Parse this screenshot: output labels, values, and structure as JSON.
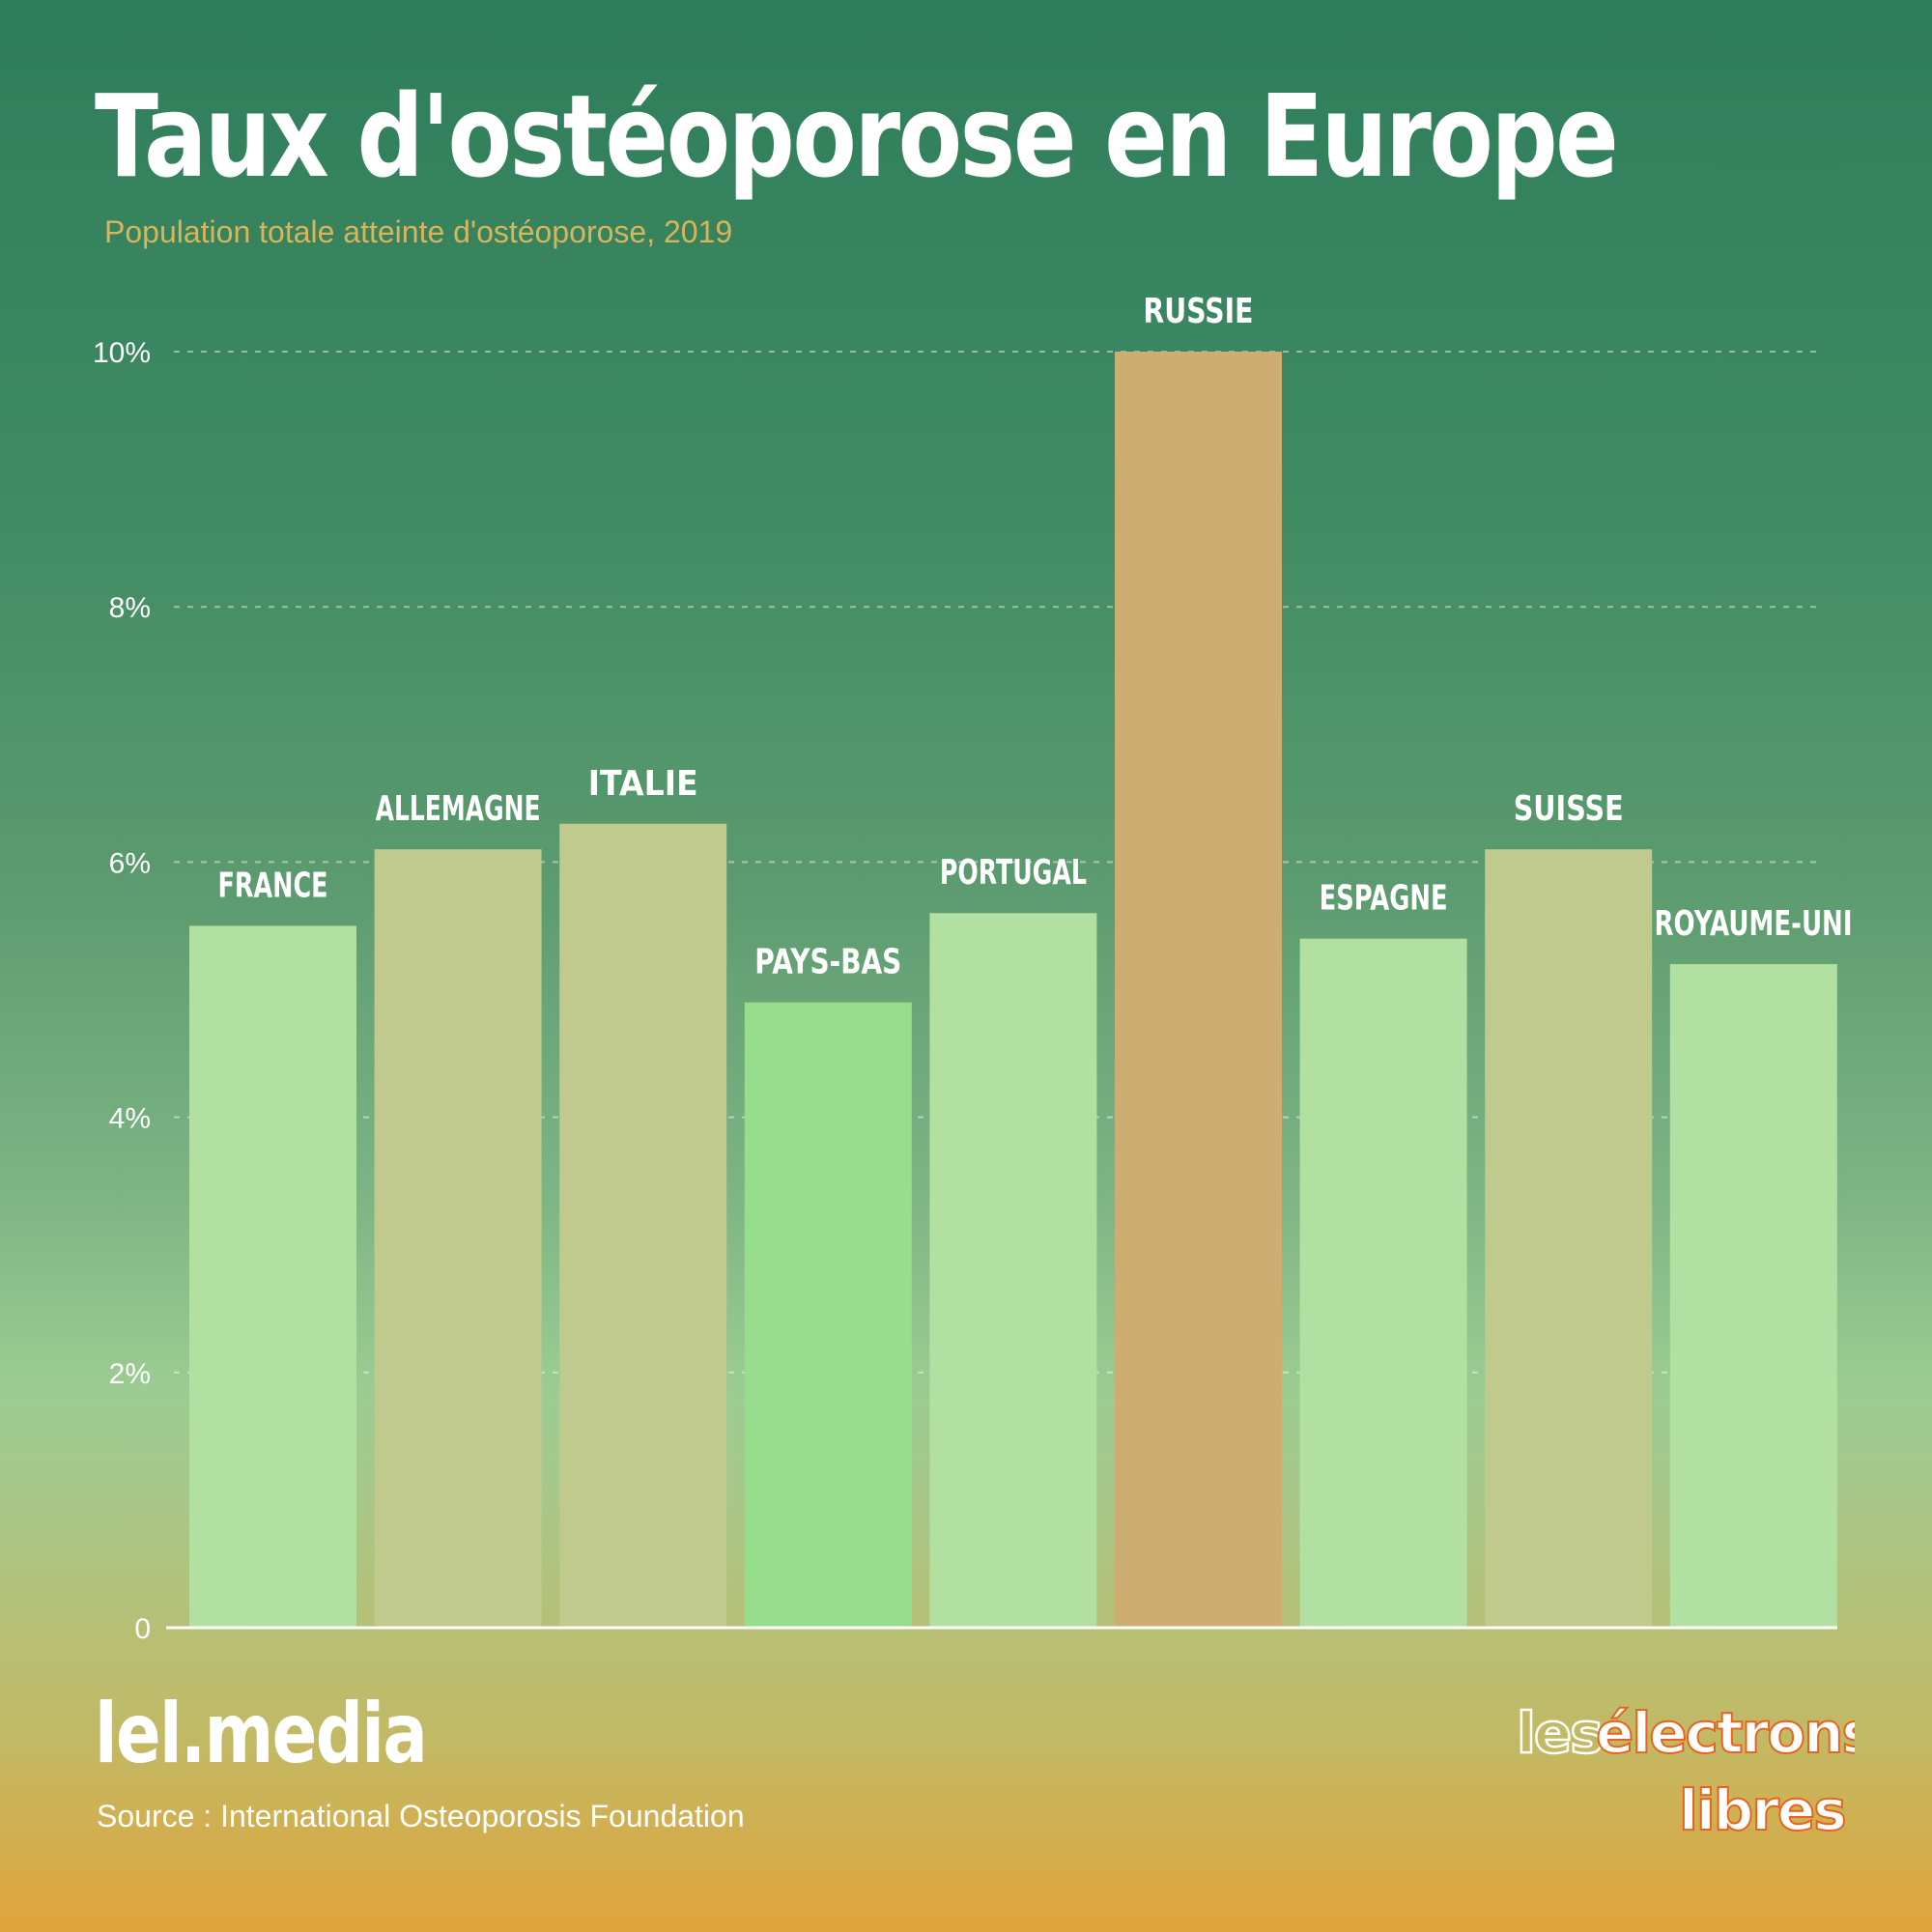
{
  "header": {
    "title": "Taux d'ostéoporose en Europe",
    "subtitle": "Population totale atteinte d'ostéoporose, 2019"
  },
  "footer": {
    "brand": "lel.media",
    "source": "Source : International Osteoporosis Foundation",
    "logo_text": "les électrons libres"
  },
  "colors": {
    "light_green": "#b2e0a0",
    "olive": "#bfca8c",
    "bright_green": "#96dd8c",
    "sand": "#cead72"
  },
  "chart_data": {
    "type": "bar",
    "title": "Taux d'ostéoporose en Europe",
    "subtitle": "Population totale atteinte d'ostéoporose, 2019",
    "xlabel": "",
    "ylabel": "",
    "ylim": [
      0,
      10
    ],
    "grid": true,
    "yticks": [
      {
        "value": 0,
        "label": "0"
      },
      {
        "value": 2,
        "label": "2%"
      },
      {
        "value": 4,
        "label": "4%"
      },
      {
        "value": 6,
        "label": "6%"
      },
      {
        "value": 8,
        "label": "8%"
      },
      {
        "value": 10,
        "label": "10%"
      }
    ],
    "categories": [
      "FRANCE",
      "ALLEMAGNE",
      "ITALIE",
      "PAYS-BAS",
      "PORTUGAL",
      "RUSSIE",
      "ESPAGNE",
      "SUISSE",
      "ROYAUME-UNI"
    ],
    "values": [
      5.5,
      6.1,
      6.3,
      4.9,
      5.6,
      10.0,
      5.4,
      6.1,
      5.2
    ],
    "bar_colors": [
      "#b2e0a0",
      "#bfca8c",
      "#bfca8c",
      "#96dd8c",
      "#b2e0a0",
      "#cead72",
      "#b2e0a0",
      "#bfca8c",
      "#b2e0a0"
    ]
  }
}
